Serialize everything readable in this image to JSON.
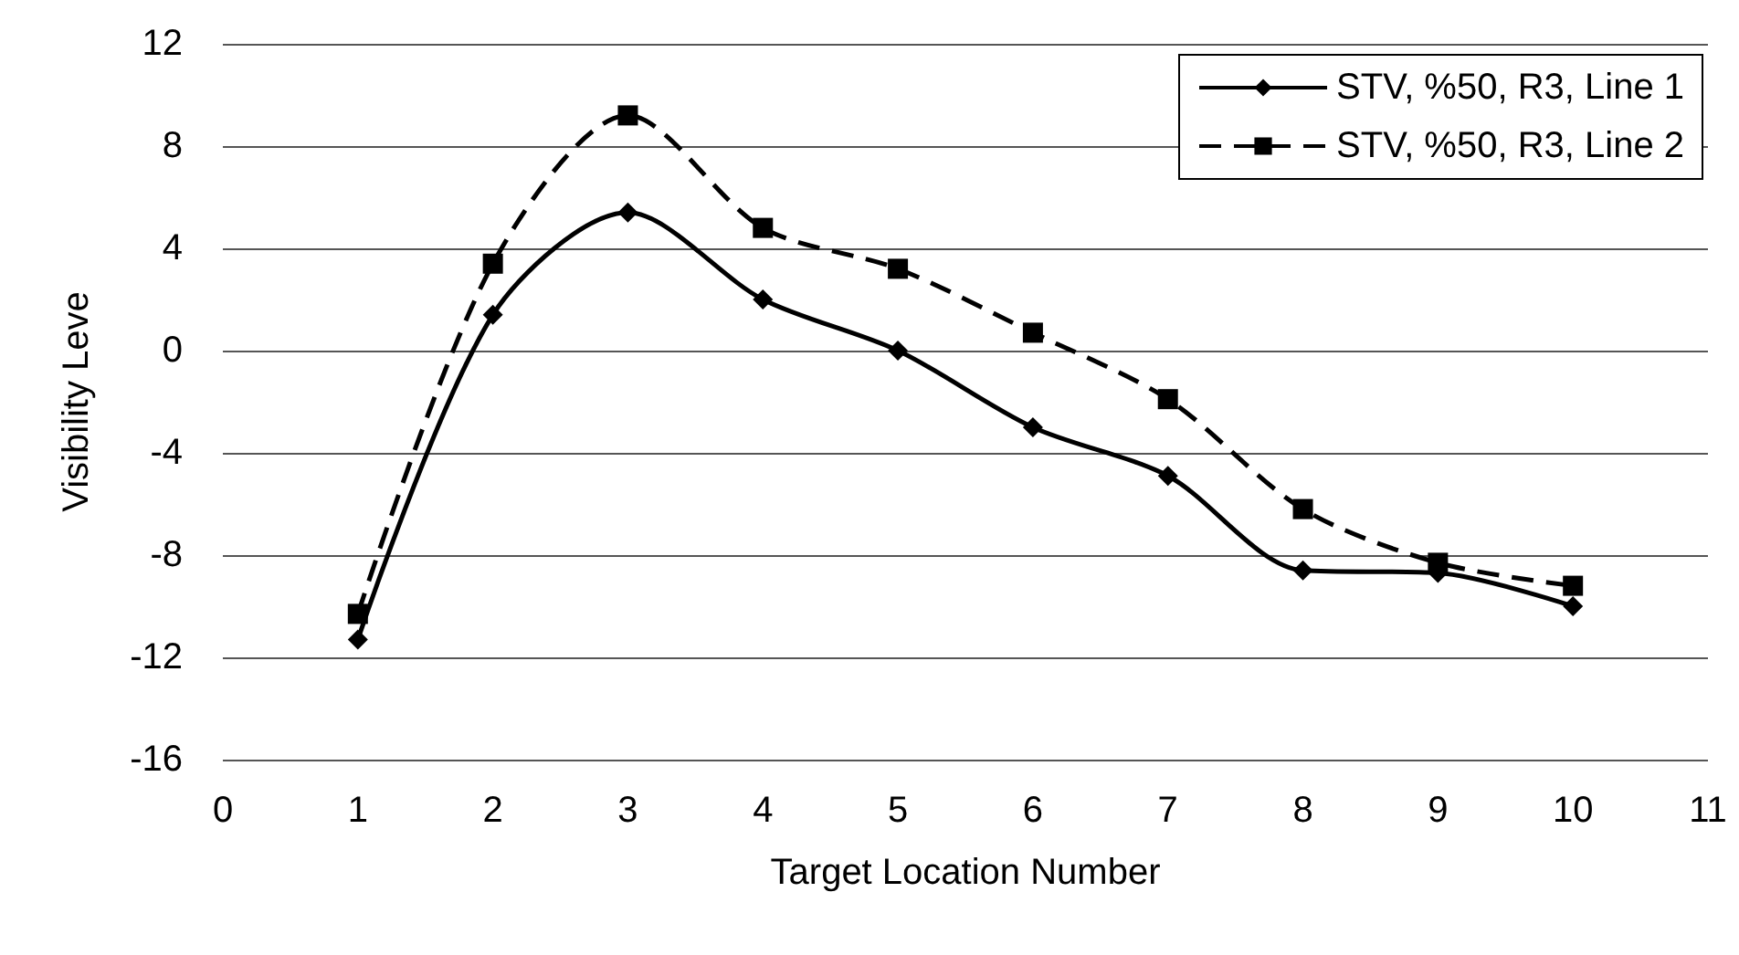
{
  "chart_data": {
    "type": "line",
    "xlabel": "Target Location Number",
    "ylabel": "Visibility Leve",
    "x": [
      1,
      2,
      3,
      4,
      5,
      6,
      7,
      8,
      9,
      10
    ],
    "series": [
      {
        "name": "STV, %50, R3, Line 1",
        "color": "#000000",
        "marker": "diamond",
        "line_style": "solid",
        "values": [
          -11.3,
          1.4,
          5.4,
          2.0,
          0.0,
          -3.0,
          -4.9,
          -8.6,
          -8.7,
          -10.0
        ]
      },
      {
        "name": "STV, %50, R3, Line 2",
        "color": "#000000",
        "marker": "square",
        "line_style": "dashed",
        "values": [
          -10.3,
          3.4,
          9.2,
          4.8,
          3.2,
          0.7,
          -1.9,
          -6.2,
          -8.3,
          -9.2
        ]
      }
    ],
    "xlim": [
      0,
      11
    ],
    "xticks": [
      0,
      1,
      2,
      3,
      4,
      5,
      6,
      7,
      8,
      9,
      10,
      11
    ],
    "ylim": [
      -16,
      12
    ],
    "yticks": [
      -16,
      -12,
      -8,
      -4,
      0,
      4,
      8,
      12
    ],
    "grid": "y",
    "legend": "top right"
  }
}
